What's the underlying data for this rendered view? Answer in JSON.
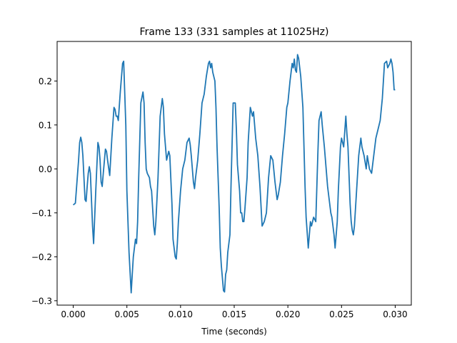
{
  "chart_data": {
    "type": "line",
    "title": "Frame 133 (331 samples at 11025Hz)",
    "xlabel": "Time (seconds)",
    "ylabel": "",
    "xlim": [
      -0.0015,
      0.0315
    ],
    "ylim": [
      -0.31,
      0.29
    ],
    "xticks": [
      0.0,
      0.005,
      0.01,
      0.015,
      0.02,
      0.025,
      0.03
    ],
    "xtick_labels": [
      "0.000",
      "0.005",
      "0.010",
      "0.015",
      "0.020",
      "0.025",
      "0.030"
    ],
    "yticks": [
      -0.3,
      -0.2,
      -0.1,
      0.0,
      0.1,
      0.2
    ],
    "ytick_labels": [
      "−0.3",
      "−0.2",
      "−0.1",
      "0.0",
      "0.1",
      "0.2"
    ],
    "grid": false,
    "series": [
      {
        "color": "#1f77b4",
        "points": [
          [
            0.0,
            -0.082
          ],
          [
            0.0002,
            -0.078
          ],
          [
            0.0005,
            0.02
          ],
          [
            0.0006,
            0.06
          ],
          [
            0.0007,
            0.072
          ],
          [
            0.0008,
            0.06
          ],
          [
            0.0009,
            0.03
          ],
          [
            0.0011,
            -0.07
          ],
          [
            0.0012,
            -0.074
          ],
          [
            0.0013,
            -0.04
          ],
          [
            0.0014,
            -0.01
          ],
          [
            0.0015,
            0.005
          ],
          [
            0.0016,
            -0.01
          ],
          [
            0.0018,
            -0.13
          ],
          [
            0.0019,
            -0.17
          ],
          [
            0.0021,
            -0.05
          ],
          [
            0.0023,
            0.06
          ],
          [
            0.0024,
            0.05
          ],
          [
            0.0025,
            0.02
          ],
          [
            0.0026,
            -0.03
          ],
          [
            0.0027,
            -0.04
          ],
          [
            0.0028,
            -0.01
          ],
          [
            0.003,
            0.045
          ],
          [
            0.0031,
            0.04
          ],
          [
            0.0032,
            0.02
          ],
          [
            0.0034,
            -0.015
          ],
          [
            0.0036,
            0.07
          ],
          [
            0.0038,
            0.14
          ],
          [
            0.0039,
            0.135
          ],
          [
            0.004,
            0.12
          ],
          [
            0.0041,
            0.12
          ],
          [
            0.0042,
            0.11
          ],
          [
            0.0044,
            0.18
          ],
          [
            0.0046,
            0.24
          ],
          [
            0.0047,
            0.245
          ],
          [
            0.0049,
            0.1
          ],
          [
            0.005,
            -0.05
          ],
          [
            0.0052,
            -0.19
          ],
          [
            0.0054,
            -0.282
          ],
          [
            0.0055,
            -0.24
          ],
          [
            0.0056,
            -0.2
          ],
          [
            0.0058,
            -0.16
          ],
          [
            0.0059,
            -0.17
          ],
          [
            0.006,
            -0.12
          ],
          [
            0.0061,
            -0.02
          ],
          [
            0.0063,
            0.15
          ],
          [
            0.0065,
            0.175
          ],
          [
            0.0066,
            0.15
          ],
          [
            0.0067,
            0.06
          ],
          [
            0.0068,
            0.0
          ],
          [
            0.0069,
            -0.01
          ],
          [
            0.007,
            -0.015
          ],
          [
            0.0071,
            -0.02
          ],
          [
            0.0072,
            -0.04
          ],
          [
            0.0073,
            -0.05
          ],
          [
            0.0075,
            -0.13
          ],
          [
            0.0076,
            -0.15
          ],
          [
            0.0077,
            -0.12
          ],
          [
            0.0079,
            -0.02
          ],
          [
            0.008,
            0.05
          ],
          [
            0.0081,
            0.12
          ],
          [
            0.0083,
            0.16
          ],
          [
            0.0084,
            0.14
          ],
          [
            0.0085,
            0.08
          ],
          [
            0.0087,
            0.02
          ],
          [
            0.0089,
            0.04
          ],
          [
            0.009,
            0.03
          ],
          [
            0.0092,
            -0.08
          ],
          [
            0.0093,
            -0.16
          ],
          [
            0.0095,
            -0.2
          ],
          [
            0.0096,
            -0.205
          ],
          [
            0.0097,
            -0.17
          ],
          [
            0.0098,
            -0.12
          ],
          [
            0.01,
            -0.05
          ],
          [
            0.0102,
            0.0
          ],
          [
            0.0104,
            0.02
          ],
          [
            0.0106,
            0.06
          ],
          [
            0.0108,
            0.07
          ],
          [
            0.0109,
            0.055
          ],
          [
            0.011,
            0.03
          ],
          [
            0.0112,
            -0.03
          ],
          [
            0.0113,
            -0.045
          ],
          [
            0.0114,
            -0.02
          ],
          [
            0.0116,
            0.02
          ],
          [
            0.0118,
            0.08
          ],
          [
            0.012,
            0.15
          ],
          [
            0.0121,
            0.16
          ],
          [
            0.0122,
            0.17
          ],
          [
            0.0124,
            0.21
          ],
          [
            0.0126,
            0.24
          ],
          [
            0.0127,
            0.245
          ],
          [
            0.0128,
            0.23
          ],
          [
            0.0129,
            0.24
          ],
          [
            0.013,
            0.22
          ],
          [
            0.0132,
            0.2
          ],
          [
            0.0133,
            0.14
          ],
          [
            0.0134,
            0.05
          ],
          [
            0.0136,
            -0.09
          ],
          [
            0.0137,
            -0.18
          ],
          [
            0.0138,
            -0.22
          ],
          [
            0.014,
            -0.277
          ],
          [
            0.0141,
            -0.28
          ],
          [
            0.0142,
            -0.24
          ],
          [
            0.0143,
            -0.23
          ],
          [
            0.0144,
            -0.19
          ],
          [
            0.0146,
            -0.15
          ],
          [
            0.0147,
            -0.04
          ],
          [
            0.0149,
            0.15
          ],
          [
            0.0151,
            0.15
          ],
          [
            0.0152,
            0.09
          ],
          [
            0.0153,
            0.01
          ],
          [
            0.0155,
            -0.05
          ],
          [
            0.0156,
            -0.1
          ],
          [
            0.0157,
            -0.1
          ],
          [
            0.0158,
            -0.12
          ],
          [
            0.0159,
            -0.12
          ],
          [
            0.016,
            -0.09
          ],
          [
            0.0162,
            -0.02
          ],
          [
            0.0163,
            0.06
          ],
          [
            0.0165,
            0.14
          ],
          [
            0.0167,
            0.12
          ],
          [
            0.0168,
            0.13
          ],
          [
            0.0169,
            0.1
          ],
          [
            0.017,
            0.07
          ],
          [
            0.0172,
            0.03
          ],
          [
            0.0174,
            -0.04
          ],
          [
            0.0176,
            -0.13
          ],
          [
            0.0178,
            -0.12
          ],
          [
            0.0179,
            -0.11
          ],
          [
            0.018,
            -0.1
          ],
          [
            0.0182,
            -0.02
          ],
          [
            0.0184,
            0.03
          ],
          [
            0.0186,
            0.02
          ],
          [
            0.0188,
            -0.03
          ],
          [
            0.0189,
            -0.05
          ],
          [
            0.019,
            -0.07
          ],
          [
            0.0191,
            -0.06
          ],
          [
            0.0193,
            -0.03
          ],
          [
            0.0195,
            0.03
          ],
          [
            0.0197,
            0.08
          ],
          [
            0.0199,
            0.14
          ],
          [
            0.02,
            0.15
          ],
          [
            0.0202,
            0.2
          ],
          [
            0.0204,
            0.24
          ],
          [
            0.0205,
            0.23
          ],
          [
            0.0206,
            0.25
          ],
          [
            0.0207,
            0.225
          ],
          [
            0.0208,
            0.22
          ],
          [
            0.0209,
            0.26
          ],
          [
            0.021,
            0.252
          ],
          [
            0.0212,
            0.21
          ],
          [
            0.0214,
            0.14
          ],
          [
            0.0215,
            0.05
          ],
          [
            0.0216,
            -0.04
          ],
          [
            0.0217,
            -0.11
          ],
          [
            0.0219,
            -0.18
          ],
          [
            0.0221,
            -0.12
          ],
          [
            0.0222,
            -0.13
          ],
          [
            0.0224,
            -0.11
          ],
          [
            0.0226,
            -0.12
          ],
          [
            0.0228,
            0.04
          ],
          [
            0.0229,
            0.11
          ],
          [
            0.0231,
            0.13
          ],
          [
            0.0232,
            0.1
          ],
          [
            0.0234,
            0.05
          ],
          [
            0.0235,
            0.02
          ],
          [
            0.0236,
            -0.01
          ],
          [
            0.0237,
            -0.04
          ],
          [
            0.0239,
            -0.08
          ],
          [
            0.024,
            -0.1
          ],
          [
            0.0241,
            -0.11
          ],
          [
            0.0243,
            -0.15
          ],
          [
            0.0244,
            -0.18
          ],
          [
            0.0246,
            -0.12
          ],
          [
            0.0247,
            -0.05
          ],
          [
            0.0249,
            0.05
          ],
          [
            0.025,
            0.07
          ],
          [
            0.0252,
            0.05
          ],
          [
            0.0254,
            0.12
          ],
          [
            0.0255,
            0.08
          ],
          [
            0.0256,
            0.05
          ],
          [
            0.0258,
            -0.08
          ],
          [
            0.0259,
            -0.12
          ],
          [
            0.026,
            -0.14
          ],
          [
            0.0261,
            -0.15
          ],
          [
            0.0262,
            -0.13
          ],
          [
            0.0264,
            -0.05
          ],
          [
            0.0266,
            0.03
          ],
          [
            0.0268,
            0.07
          ],
          [
            0.0269,
            0.05
          ],
          [
            0.0271,
            0.03
          ],
          [
            0.0273,
            0.0
          ],
          [
            0.0274,
            0.03
          ],
          [
            0.0276,
            0.0
          ],
          [
            0.0278,
            -0.01
          ],
          [
            0.028,
            0.03
          ],
          [
            0.0282,
            0.07
          ],
          [
            0.0284,
            0.09
          ],
          [
            0.0286,
            0.11
          ],
          [
            0.0288,
            0.16
          ],
          [
            0.029,
            0.24
          ],
          [
            0.0292,
            0.245
          ],
          [
            0.0293,
            0.23
          ],
          [
            0.0295,
            0.24
          ],
          [
            0.0296,
            0.25
          ],
          [
            0.0297,
            0.24
          ],
          [
            0.0298,
            0.22
          ],
          [
            0.0299,
            0.18
          ],
          [
            0.03,
            0.18
          ]
        ]
      }
    ]
  }
}
